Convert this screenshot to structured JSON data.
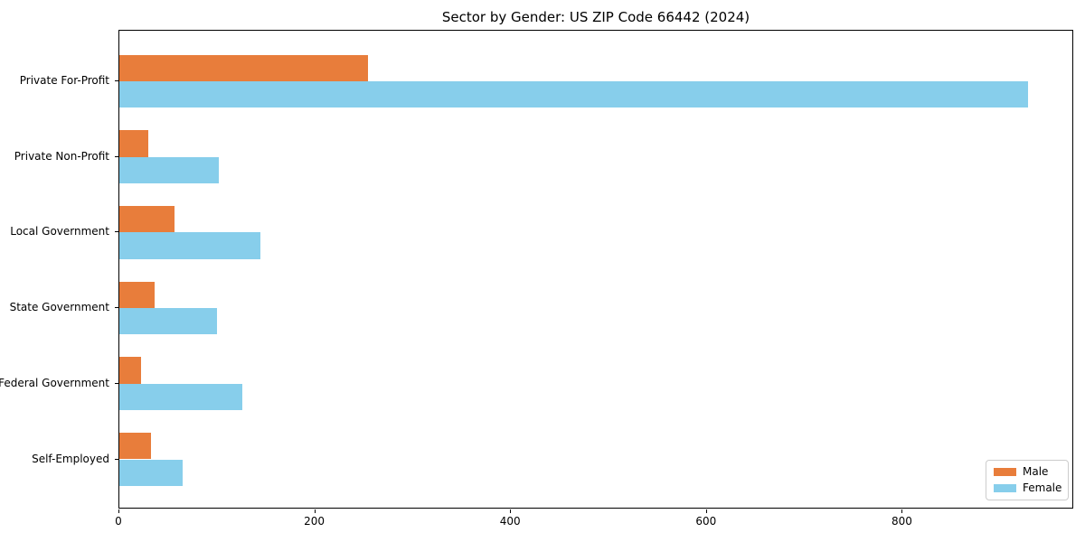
{
  "chart_data": {
    "type": "bar",
    "orientation": "horizontal",
    "title": "Sector by Gender: US ZIP Code 66442 (2024)",
    "categories": [
      "Private For-Profit",
      "Private Non-Profit",
      "Local Government",
      "State Government",
      "Federal Government",
      "Self-Employed"
    ],
    "series": [
      {
        "name": "Male",
        "color": "#e87d3b",
        "values": [
          254,
          30,
          56,
          36,
          22,
          32
        ]
      },
      {
        "name": "Female",
        "color": "#87ceeb",
        "values": [
          928,
          102,
          144,
          100,
          126,
          65
        ]
      }
    ],
    "xlabel": "",
    "ylabel": "",
    "xlim": [
      0,
      975
    ],
    "xticks": [
      0,
      200,
      400,
      600,
      800
    ],
    "grid": false,
    "legend_position": "lower right",
    "plot_border_color": "#000000",
    "background_color": "#ffffff"
  },
  "legend": {
    "items": [
      {
        "label": "Male",
        "color": "#e87d3b"
      },
      {
        "label": "Female",
        "color": "#87ceeb"
      }
    ]
  }
}
